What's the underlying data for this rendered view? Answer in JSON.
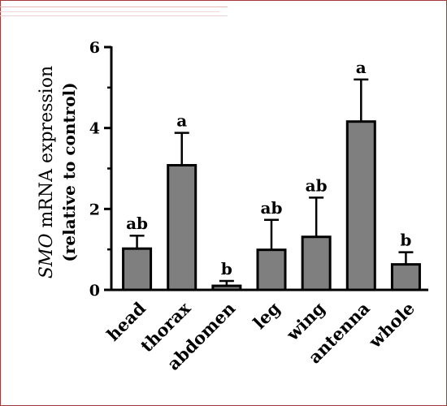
{
  "chart_data": {
    "type": "bar",
    "ylabel_italic": "SMO",
    "ylabel_rest": " mRNA expression",
    "ylabel_line2": "(relative to control)",
    "categories": [
      "head",
      "thorax",
      "abdomen",
      "leg",
      "wing",
      "antenna",
      "whole"
    ],
    "values": [
      1.02,
      3.08,
      0.1,
      0.99,
      1.31,
      4.16,
      0.63
    ],
    "errors": [
      0.32,
      0.8,
      0.12,
      0.74,
      0.97,
      1.04,
      0.3
    ],
    "significance": [
      "ab",
      "a",
      "b",
      "ab",
      "ab",
      "a",
      "b"
    ],
    "ylim": [
      0,
      6
    ],
    "yticks": [
      "0",
      "2",
      "4",
      "6"
    ],
    "bar_color": "#7f7f7f",
    "grid": false
  }
}
